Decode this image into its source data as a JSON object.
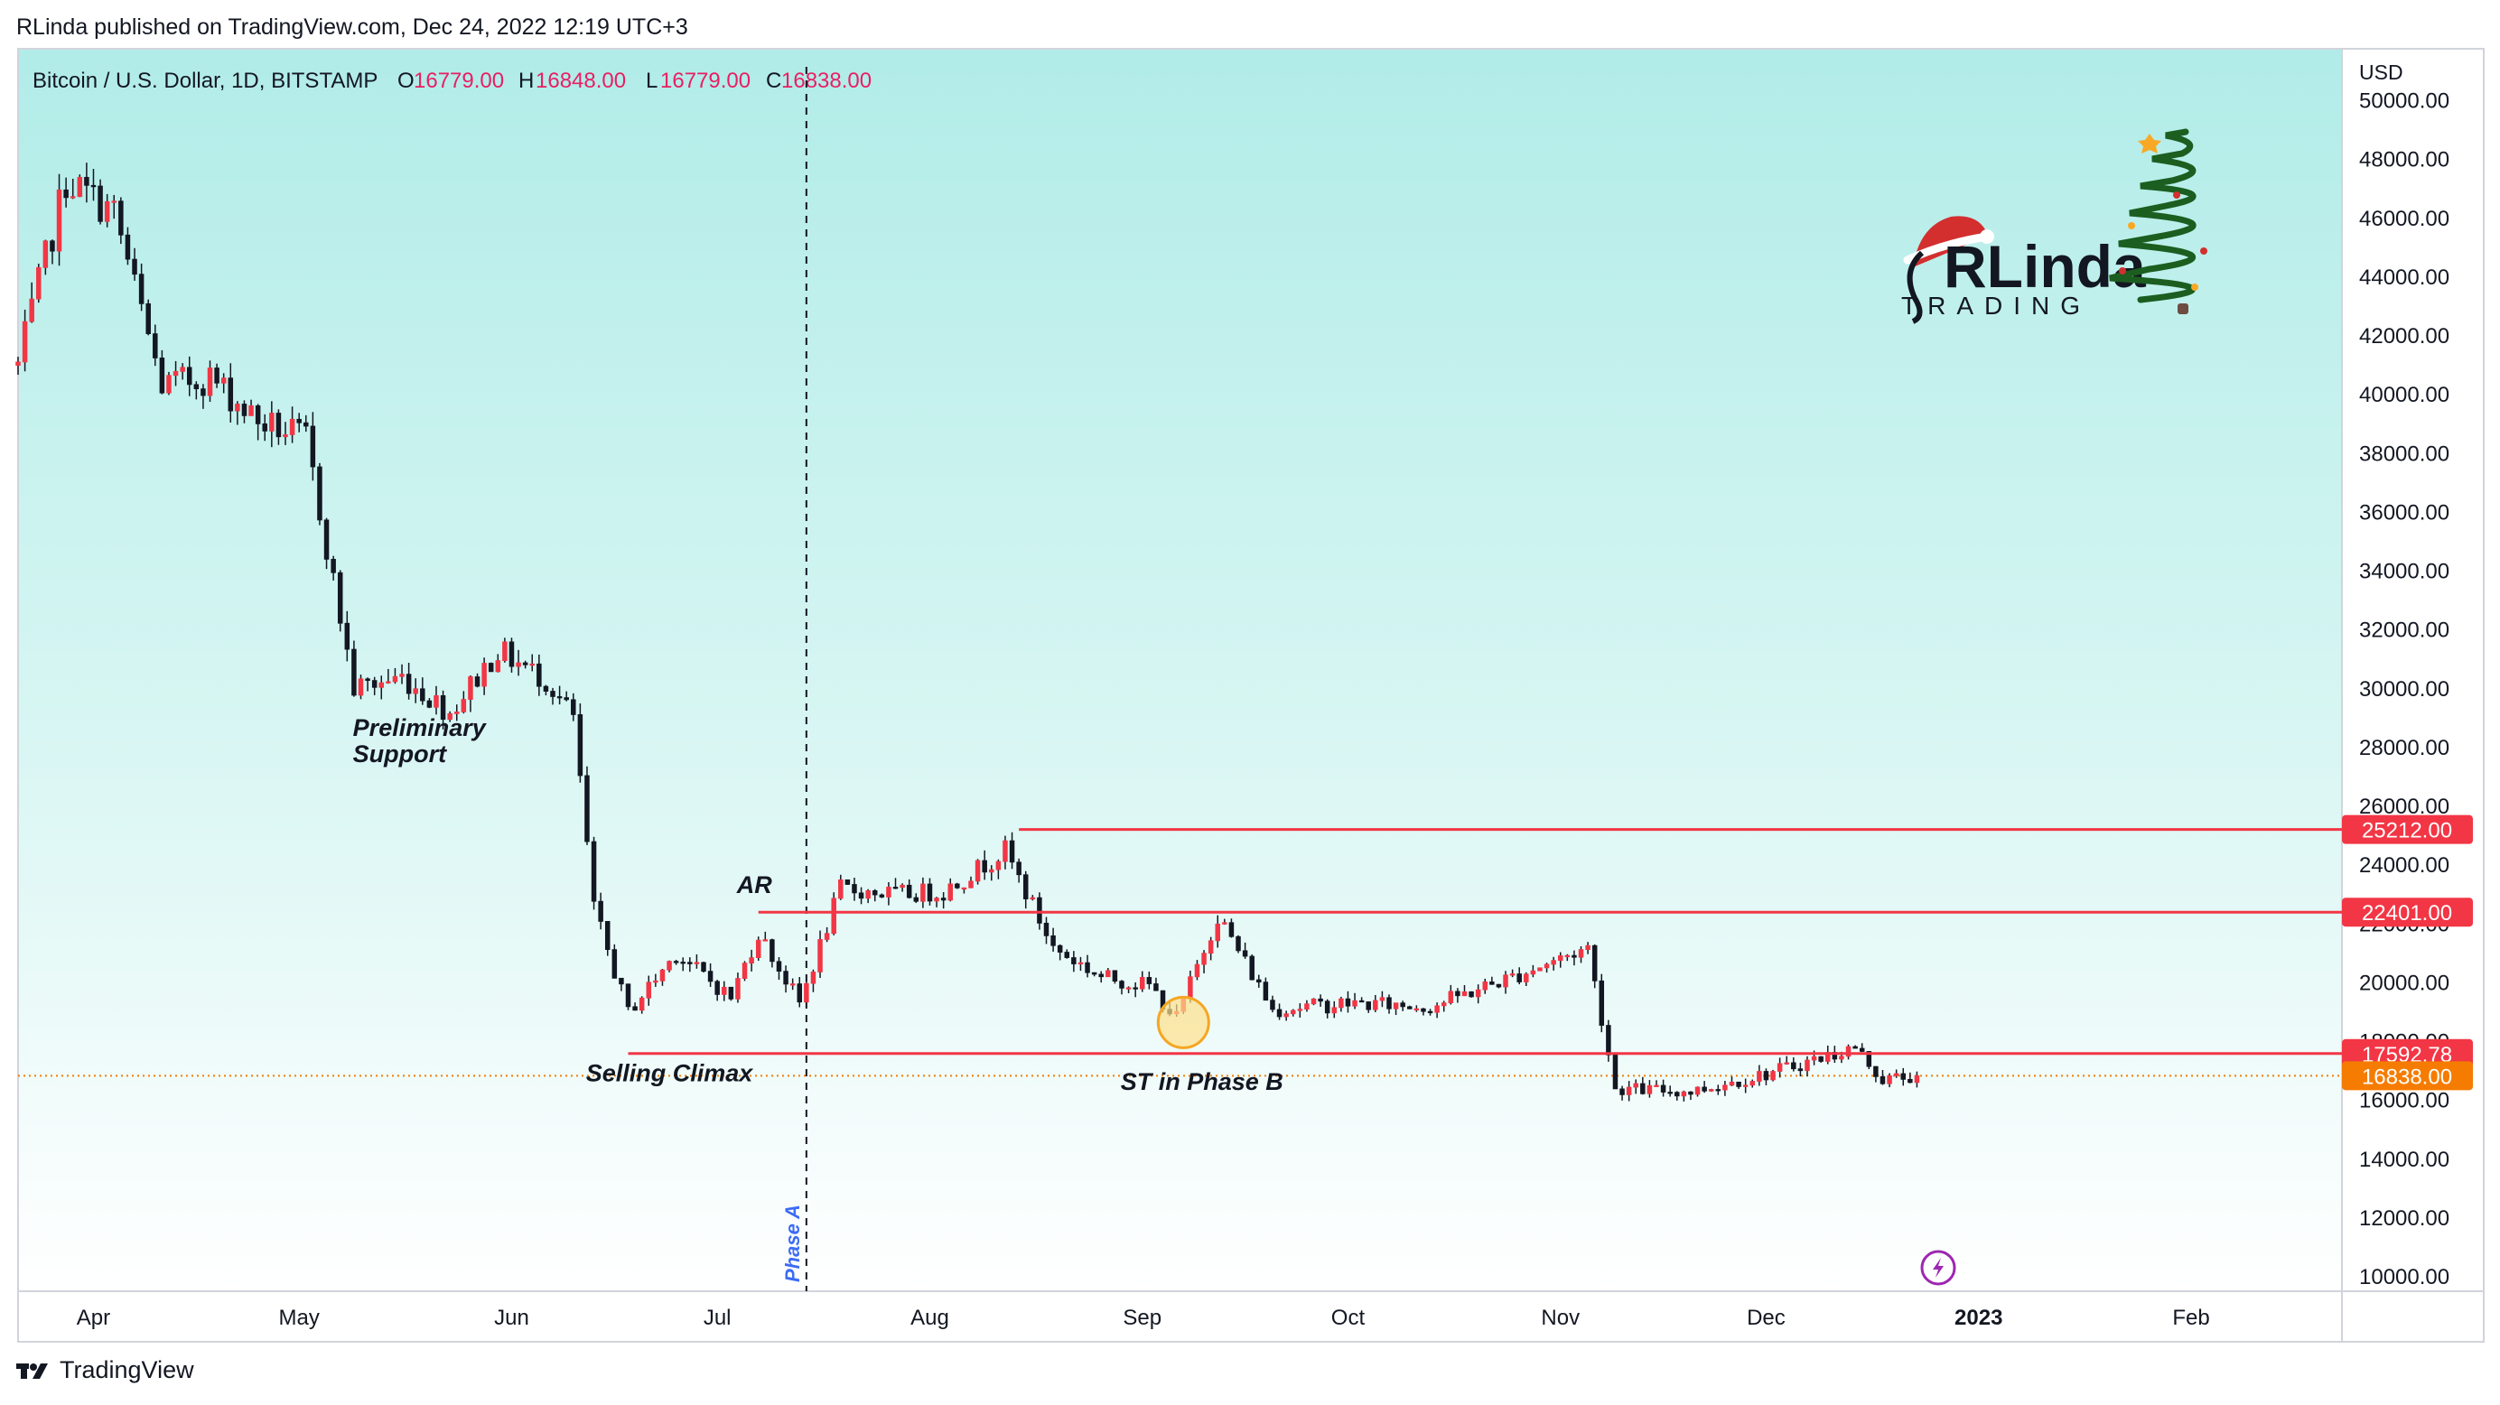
{
  "header": {
    "published": "RLinda published on TradingView.com, Dec 24, 2022 12:19 UTC+3"
  },
  "footer": {
    "brand": "TradingView"
  },
  "logo": {
    "name_part1": "RLinda",
    "name_part2": "TRADING",
    "icon": "christmas-tree-icon"
  },
  "chart_data": {
    "type": "candlestick",
    "symbol": "Bitcoin / U.S. Dollar, 1D, BITSTAMP",
    "ohlc_labels": {
      "o": "O",
      "h": "H",
      "l": "L",
      "c": "C"
    },
    "ohlc": {
      "open": "16779.00",
      "high": "16848.00",
      "low": "16779.00",
      "close": "16838.00"
    },
    "currency": "USD",
    "ylim": [
      10000,
      51000
    ],
    "y_ticks": [
      "50000.00",
      "48000.00",
      "46000.00",
      "44000.00",
      "42000.00",
      "40000.00",
      "38000.00",
      "36000.00",
      "34000.00",
      "32000.00",
      "30000.00",
      "28000.00",
      "26000.00",
      "24000.00",
      "22000.00",
      "20000.00",
      "18000.00",
      "16000.00",
      "14000.00",
      "12000.00",
      "10000.00"
    ],
    "x_ticks": [
      {
        "label": "Apr",
        "date": "2022-04-01"
      },
      {
        "label": "May",
        "date": "2022-05-01"
      },
      {
        "label": "Jun",
        "date": "2022-06-01"
      },
      {
        "label": "Jul",
        "date": "2022-07-01"
      },
      {
        "label": "Aug",
        "date": "2022-08-01"
      },
      {
        "label": "Sep",
        "date": "2022-09-01"
      },
      {
        "label": "Oct",
        "date": "2022-10-01"
      },
      {
        "label": "Nov",
        "date": "2022-11-01"
      },
      {
        "label": "Dec",
        "date": "2022-12-01"
      },
      {
        "label": "2023",
        "date": "2023-01-01"
      },
      {
        "label": "Feb",
        "date": "2023-02-01"
      }
    ],
    "x_range": [
      "2022-03-21",
      "2023-02-23"
    ],
    "levels": [
      {
        "value": 25212,
        "label": "25212.00",
        "start": "2022-08-14",
        "color": "#f23645"
      },
      {
        "value": 22401,
        "label": "22401.00",
        "start": "2022-07-07",
        "color": "#f23645"
      },
      {
        "value": 17592.78,
        "label": "17592.78",
        "start": "2022-06-18",
        "color": "#f23645"
      }
    ],
    "last_price": {
      "value": 16838,
      "label": "16838.00",
      "color": "#f57c00"
    },
    "phase_line": {
      "date": "2022-07-14",
      "label": "Phase A"
    },
    "annotations": [
      {
        "text": "Preliminary",
        "date": "2022-05-12",
        "value": 28400
      },
      {
        "text": "Support",
        "date": "2022-05-12",
        "value": 27500
      },
      {
        "text": "AR",
        "date": "2022-07-07",
        "value": 23050
      },
      {
        "text": "Selling Climax",
        "date": "2022-06-15",
        "value": 16650
      },
      {
        "text": "ST in Phase B",
        "date": "2022-09-01",
        "value": 16350
      }
    ],
    "circle_marker": {
      "date": "2022-09-07",
      "value": 18650
    },
    "series": [
      {
        "name": "BTCUSD",
        "anchors": [
          [
            "2022-03-21",
            41000
          ],
          [
            "2022-03-28",
            47300
          ],
          [
            "2022-04-04",
            46200
          ],
          [
            "2022-04-11",
            40300
          ],
          [
            "2022-04-18",
            40600
          ],
          [
            "2022-04-25",
            39100
          ],
          [
            "2022-05-02",
            38500
          ],
          [
            "2022-05-09",
            30000
          ],
          [
            "2022-05-16",
            30400
          ],
          [
            "2022-05-23",
            29200
          ],
          [
            "2022-05-30",
            31300
          ],
          [
            "2022-06-06",
            30300
          ],
          [
            "2022-06-10",
            29000
          ],
          [
            "2022-06-13",
            22500
          ],
          [
            "2022-06-18",
            19000
          ],
          [
            "2022-06-25",
            21000
          ],
          [
            "2022-07-03",
            19500
          ],
          [
            "2022-07-07",
            21700
          ],
          [
            "2022-07-13",
            19300
          ],
          [
            "2022-07-19",
            23200
          ],
          [
            "2022-07-27",
            23000
          ],
          [
            "2022-08-03",
            23100
          ],
          [
            "2022-08-12",
            24500
          ],
          [
            "2022-08-19",
            21200
          ],
          [
            "2022-08-26",
            20200
          ],
          [
            "2022-09-02",
            19900
          ],
          [
            "2022-09-06",
            18800
          ],
          [
            "2022-09-12",
            22300
          ],
          [
            "2022-09-20",
            19100
          ],
          [
            "2022-10-01",
            19300
          ],
          [
            "2022-10-13",
            19200
          ],
          [
            "2022-10-25",
            20200
          ],
          [
            "2022-11-05",
            21200
          ],
          [
            "2022-11-09",
            16400
          ],
          [
            "2022-11-20",
            16300
          ],
          [
            "2022-12-01",
            16900
          ],
          [
            "2022-12-14",
            17800
          ],
          [
            "2022-12-18",
            16700
          ],
          [
            "2022-12-23",
            16838
          ]
        ]
      }
    ]
  }
}
